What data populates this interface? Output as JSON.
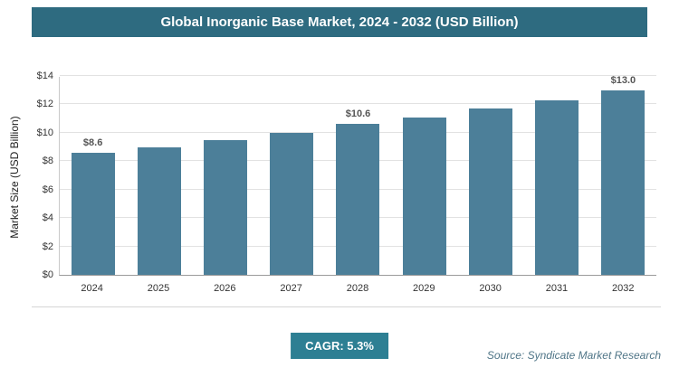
{
  "title": "Global Inorganic Base Market, 2024 - 2032 (USD Billion)",
  "chart_data": {
    "type": "bar",
    "categories": [
      "2024",
      "2025",
      "2026",
      "2027",
      "2028",
      "2029",
      "2030",
      "2031",
      "2032"
    ],
    "values": [
      8.6,
      9.0,
      9.5,
      10.0,
      10.6,
      11.1,
      11.7,
      12.3,
      13.0
    ],
    "value_labels": [
      "$8.6",
      null,
      null,
      null,
      "$10.6",
      null,
      null,
      null,
      "$13.0"
    ],
    "title": "Global Inorganic Base Market, 2024 - 2032 (USD Billion)",
    "xlabel": "",
    "ylabel": "Market Size (USD Billion)",
    "ylim": [
      0,
      14
    ],
    "ytick_labels": [
      "$0",
      "$2",
      "$4",
      "$6",
      "$8",
      "$10",
      "$12",
      "$14"
    ],
    "grid": true,
    "legend": "none"
  },
  "footer": {
    "cagr_label": "CAGR: 5.3%",
    "source": "Source: Syndicate Market Research"
  },
  "colors": {
    "banner": "#2e6b80",
    "bar": "#4c7f99",
    "badge": "#2d7f93",
    "source_text": "#4f7587"
  }
}
